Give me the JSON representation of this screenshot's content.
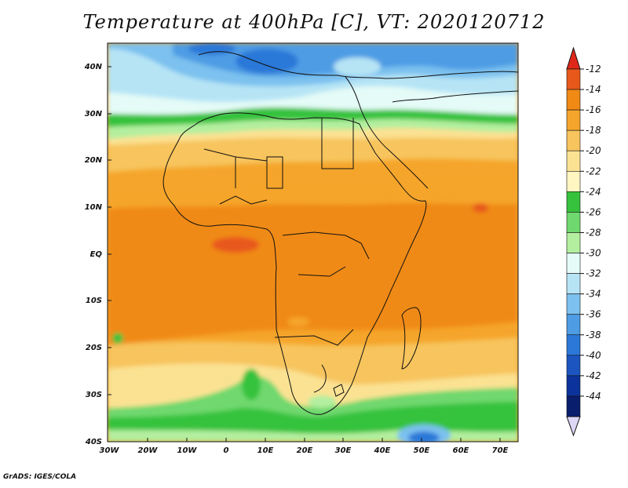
{
  "title": "Temperature at 400hPa [C], VT: 2020120712",
  "credit": "GrADS: IGES/COLA",
  "map": {
    "lat_ticks": [
      "40N",
      "30N",
      "20N",
      "10N",
      "EQ",
      "10S",
      "20S",
      "30S",
      "40S"
    ],
    "lon_ticks": [
      "30W",
      "20W",
      "10W",
      "0",
      "10E",
      "20E",
      "30E",
      "40E",
      "50E",
      "60E",
      "70E"
    ]
  },
  "colorbar": {
    "levels": [
      "-12",
      "-14",
      "-16",
      "-18",
      "-20",
      "-22",
      "-24",
      "-26",
      "-28",
      "-30",
      "-32",
      "-34",
      "-36",
      "-38",
      "-40",
      "-42",
      "-44"
    ],
    "colors": [
      "#e8581b",
      "#f08a14",
      "#f5a52b",
      "#f7c45d",
      "#fbe293",
      "#fff6c2",
      "#36c23c",
      "#6fd86e",
      "#b3ef9f",
      "#e4fbf7",
      "#b6e4f5",
      "#7cc1ef",
      "#4d9ce4",
      "#2b78d8",
      "#1c55c0",
      "#0c339c",
      "#0a1e6e"
    ],
    "top_color": "#e0281a",
    "bottom_color": "#ddd6f5"
  }
}
